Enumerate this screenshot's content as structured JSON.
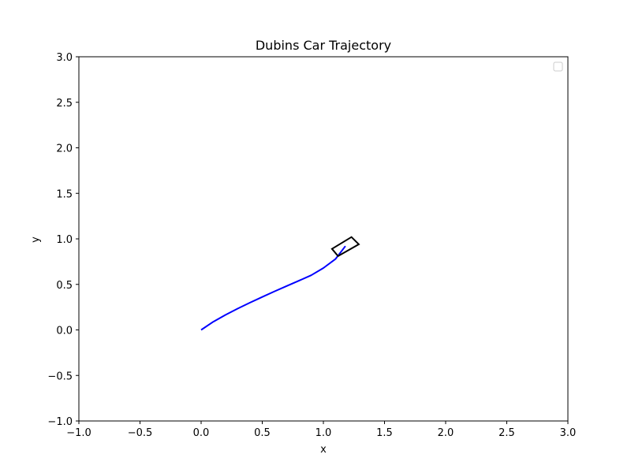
{
  "chart_data": {
    "type": "line",
    "title": "Dubins Car Trajectory",
    "xlabel": "x",
    "ylabel": "y",
    "xlim": [
      -1.0,
      3.0
    ],
    "ylim": [
      -1.0,
      3.0
    ],
    "xticks": [
      -1.0,
      -0.5,
      0.0,
      0.5,
      1.0,
      1.5,
      2.0,
      2.5,
      3.0
    ],
    "yticks": [
      -1.0,
      -0.5,
      0.0,
      0.5,
      1.0,
      1.5,
      2.0,
      2.5,
      3.0
    ],
    "xtick_labels": [
      "−1.0",
      "−0.5",
      "0.0",
      "0.5",
      "1.0",
      "1.5",
      "2.0",
      "2.5",
      "3.0"
    ],
    "ytick_labels": [
      "−1.0",
      "−0.5",
      "0.0",
      "0.5",
      "1.0",
      "1.5",
      "2.0",
      "2.5",
      "3.0"
    ],
    "grid": false,
    "legend": {
      "placement": "top-right",
      "entries": []
    },
    "colors": {
      "trajectory": "#0000ff",
      "car": "#000000",
      "axes": "#000000"
    },
    "series": [
      {
        "x": [
          0.0,
          0.1,
          0.2,
          0.3,
          0.4,
          0.5,
          0.6,
          0.7,
          0.8,
          0.9,
          1.0,
          1.1,
          1.18
        ],
        "y": [
          0.0,
          0.09,
          0.165,
          0.235,
          0.3,
          0.362,
          0.423,
          0.482,
          0.54,
          0.6,
          0.68,
          0.78,
          0.92
        ]
      }
    ],
    "car": {
      "corners": [
        [
          1.07,
          0.89
        ],
        [
          1.23,
          1.02
        ],
        [
          1.29,
          0.94
        ],
        [
          1.12,
          0.81
        ]
      ]
    }
  }
}
